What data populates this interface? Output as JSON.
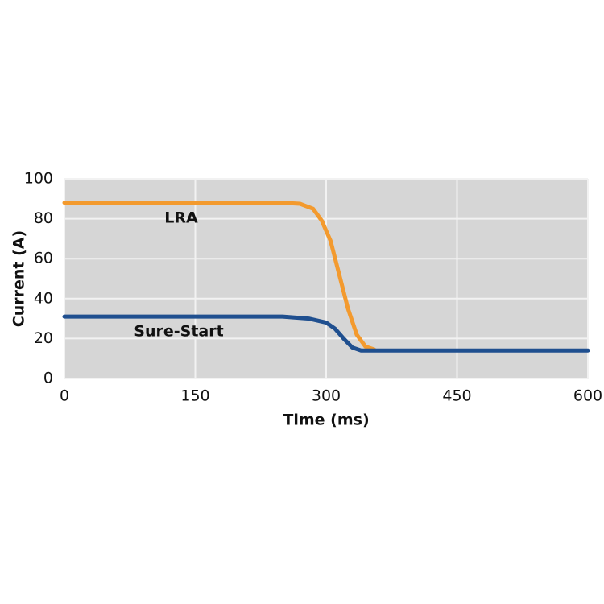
{
  "chart_data": {
    "type": "line",
    "x_label": "Time (ms)",
    "y_label": "Current (A)",
    "xlim": [
      0,
      600
    ],
    "xticks": [
      0,
      150,
      300,
      450,
      600
    ],
    "ylim": [
      0,
      100
    ],
    "yticks": [
      0,
      20,
      40,
      60,
      80,
      100
    ],
    "grid": true,
    "series": [
      {
        "name": "LRA",
        "color": "#f39a2e",
        "x": [
          0,
          250,
          270,
          285,
          295,
          305,
          315,
          325,
          335,
          345,
          355
        ],
        "values": [
          88,
          88,
          87.5,
          85,
          79,
          69,
          52,
          35,
          22,
          16,
          14.5
        ]
      },
      {
        "name": "Sure-Start",
        "color": "#1f4f8f",
        "x": [
          0,
          250,
          280,
          300,
          310,
          320,
          330,
          340,
          600
        ],
        "values": [
          31,
          31,
          30,
          28,
          25,
          20,
          15.5,
          14,
          14
        ]
      }
    ]
  }
}
